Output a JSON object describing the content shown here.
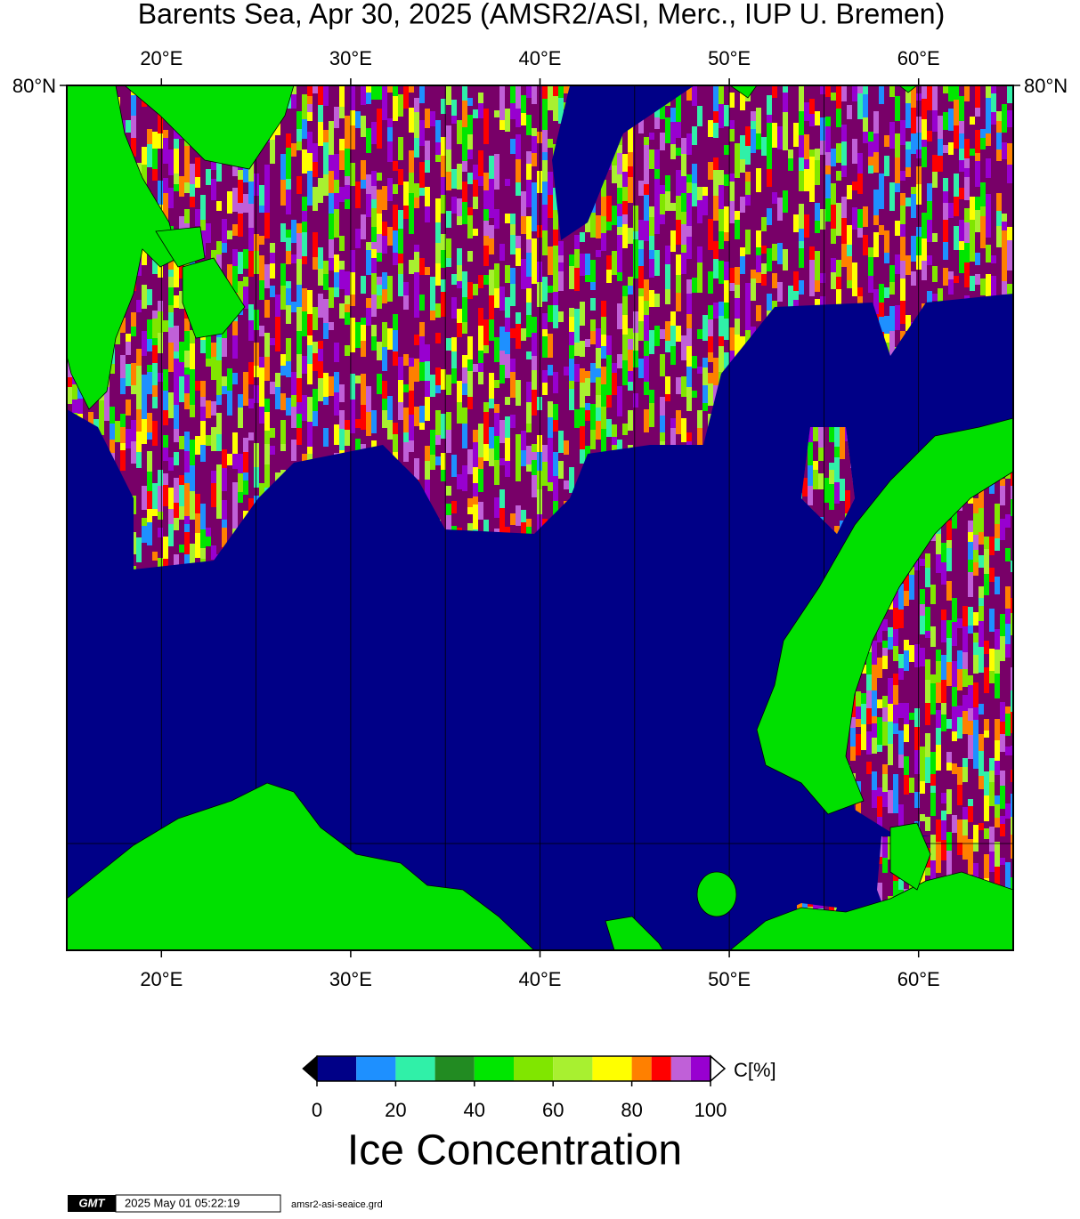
{
  "title": "Barents Sea, Apr 30, 2025 (AMSR2/ASI, Merc., IUP U. Bremen)",
  "map": {
    "lon_lim": [
      15,
      65
    ],
    "lon_ticks": [
      {
        "value": 20,
        "label": "20°E"
      },
      {
        "value": 30,
        "label": "30°E"
      },
      {
        "value": 40,
        "label": "40°E"
      },
      {
        "value": 50,
        "label": "50°E"
      },
      {
        "value": 60,
        "label": "60°E"
      }
    ],
    "lon_gridlines": [
      20,
      25,
      30,
      35,
      40,
      45,
      50,
      55,
      60
    ],
    "lat_ticks": [
      {
        "value": 80,
        "label": "80°N"
      }
    ]
  },
  "colorbar": {
    "label": "Ice Concentration",
    "unit": "C[%]",
    "lim": [
      0,
      100
    ],
    "ticks": [
      0,
      20,
      40,
      60,
      80,
      100
    ],
    "bins": [
      0,
      10,
      20,
      30,
      40,
      50,
      60,
      70,
      80,
      85,
      90,
      95,
      100
    ],
    "colors": [
      "#000087",
      "#1e90ff",
      "#30f0a8",
      "#228b22",
      "#00e600",
      "#80e600",
      "#a8f030",
      "#ffff00",
      "#ff8000",
      "#ff0000",
      "#c060d8",
      "#9800d0"
    ]
  },
  "footer": {
    "logo": "GMT",
    "timestamp": "2025 May 01 05:22:19",
    "file": "amsr2-asi-seaice.grd"
  }
}
